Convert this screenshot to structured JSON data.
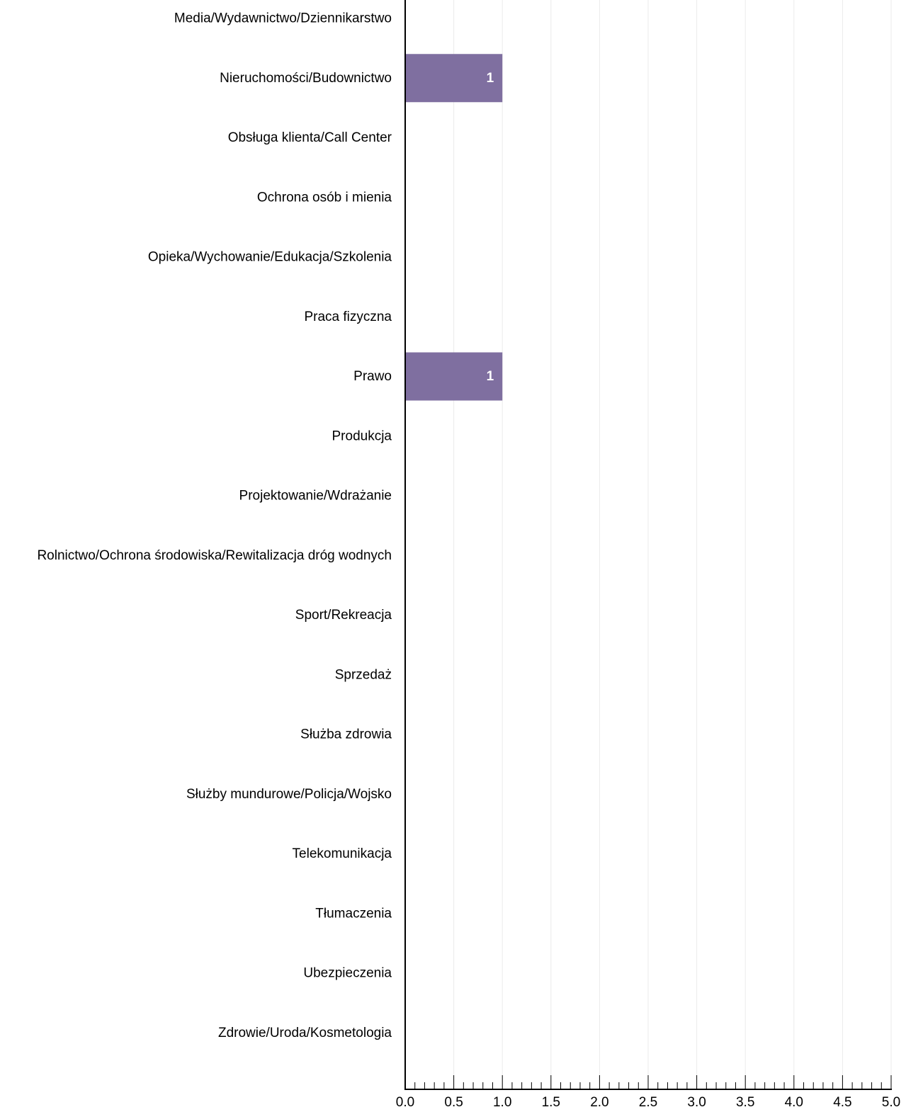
{
  "chart_data": {
    "type": "bar",
    "orientation": "horizontal",
    "categories": [
      "Media/Wydawnictwo/Dziennikarstwo",
      "Nieruchomości/Budownictwo",
      "Obsługa klienta/Call Center",
      "Ochrona osób i mienia",
      "Opieka/Wychowanie/Edukacja/Szkolenia",
      "Praca fizyczna",
      "Prawo",
      "Produkcja",
      "Projektowanie/Wdrażanie",
      "Rolnictwo/Ochrona środowiska/Rewitalizacja dróg wodnych",
      "Sport/Rekreacja",
      "Sprzedaż",
      "Służba zdrowia",
      "Służby mundurowe/Policja/Wojsko",
      "Telekomunikacja",
      "Tłumaczenia",
      "Ubezpieczenia",
      "Zdrowie/Uroda/Kosmetologia"
    ],
    "values": [
      0,
      1,
      0,
      0,
      0,
      0,
      1,
      0,
      0,
      0,
      0,
      0,
      0,
      0,
      0,
      0,
      0,
      0
    ],
    "data_labels": [
      "",
      "1",
      "",
      "",
      "",
      "",
      "1",
      "",
      "",
      "",
      "",
      "",
      "",
      "",
      "",
      "",
      "",
      ""
    ],
    "xlim": [
      0,
      5
    ],
    "x_ticks": [
      "0.0",
      "0.5",
      "1.0",
      "1.5",
      "2.0",
      "2.5",
      "3.0",
      "3.5",
      "4.0",
      "4.5",
      "5.0"
    ],
    "grid": true,
    "title": "",
    "xlabel": "",
    "ylabel": "",
    "colors": {
      "bar": "#7f6fa0",
      "bar_label": "#ffffff",
      "grid": "#ebebeb",
      "axis": "#000000"
    }
  }
}
